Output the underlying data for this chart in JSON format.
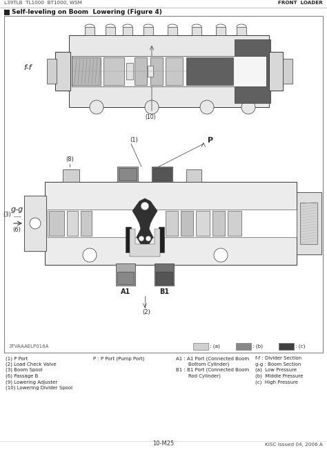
{
  "title_left": "L39TLB  TL1000  BT1000, WSM",
  "title_right": "FRONT  LOADER",
  "section_title": "Self-leveling on Boom  Lowering (Figure 4)",
  "figure_code": "3TVAAAELP016A",
  "page_number": "10-M25",
  "issued": "KISC Issued 04, 2006 A",
  "legend_colors": [
    "#d0d0d0",
    "#888888",
    "#404040"
  ],
  "legend_labels": [
    ": (a)",
    ": (b)",
    ": (c)"
  ],
  "footnotes_col1": [
    "(1) P Port",
    "(2) Load Check Valve",
    "(3) Boom Spool",
    "(6) Passage B",
    "(9) Lowering Adjuster",
    "(10) Lowering Divider Spool"
  ],
  "footnotes_col2": "P : P Port (Pump Port)",
  "footnotes_col3_line1": "A1 : A1 Port (Connected Boom",
  "footnotes_col3_line2": "        Bottom Cylinder)",
  "footnotes_col3_line3": "B1 : B1 Port (Connected Boom",
  "footnotes_col3_line4": "        Rod Cylinder)",
  "footnotes_col4": [
    "f-f : Divider Section",
    "g-g : Boom Section",
    "(a)  Low Pressure",
    "(b)  Middle Pressure",
    "(c)  High Pressure"
  ],
  "bg_color": "#ffffff",
  "box_border": "#888888",
  "lc": "#333333"
}
